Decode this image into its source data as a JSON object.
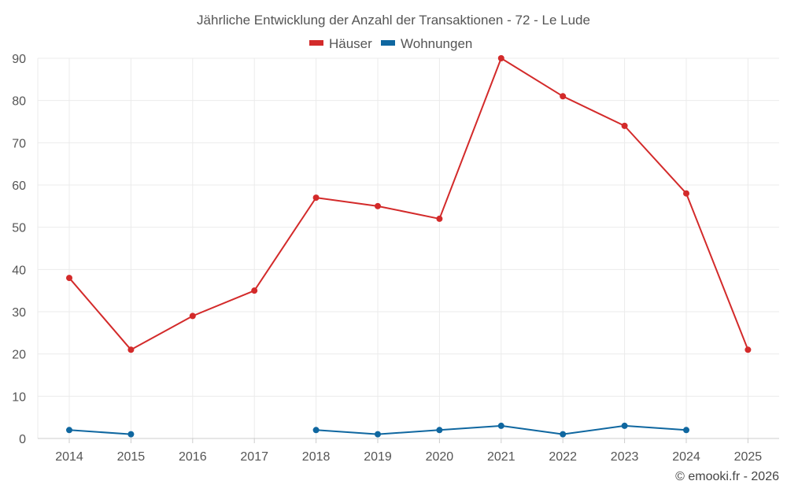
{
  "chart_data": {
    "type": "line",
    "title": "Jährliche Entwicklung der Anzahl der Transaktionen - 72 - Le Lude",
    "categories": [
      "2014",
      "2015",
      "2016",
      "2017",
      "2018",
      "2019",
      "2020",
      "2021",
      "2022",
      "2023",
      "2024",
      "2025"
    ],
    "series": [
      {
        "name": "Häuser",
        "color": "#d32a2a",
        "values": [
          38,
          21,
          29,
          35,
          57,
          55,
          52,
          90,
          81,
          74,
          58,
          21
        ]
      },
      {
        "name": "Wohnungen",
        "color": "#0f67a0",
        "values": [
          2,
          1,
          null,
          null,
          2,
          1,
          2,
          3,
          1,
          3,
          2,
          null
        ]
      }
    ],
    "ylim": [
      0,
      90
    ],
    "yticks": [
      0,
      10,
      20,
      30,
      40,
      50,
      60,
      70,
      80,
      90
    ],
    "legend_position": "top-center",
    "grid": true
  },
  "credit": "© emooki.fr - 2026"
}
